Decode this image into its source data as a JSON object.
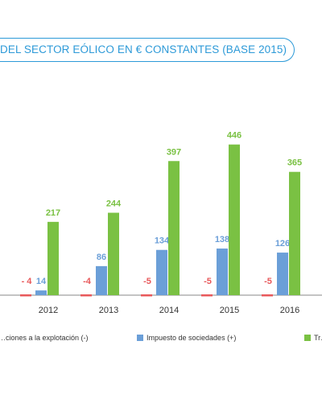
{
  "chart_data": {
    "type": "bar",
    "title": "DEL SECTOR EÓLICO EN € CONSTANTES (BASE 2015)",
    "categories": [
      "2012",
      "2013",
      "2014",
      "2015",
      "2016"
    ],
    "ylim": [
      -20,
      460
    ],
    "series": [
      {
        "name": "…ciones a la explotación (-)",
        "color": "#e8585a",
        "values": [
          -4,
          -4,
          -5,
          -5,
          -5
        ],
        "labels": [
          "- 4",
          "-4",
          "-5",
          "-5",
          "-5"
        ]
      },
      {
        "name": "Impuesto de sociedades (+)",
        "color": "#6b9fd8",
        "values": [
          14,
          86,
          134,
          138,
          126
        ],
        "labels": [
          "14",
          "86",
          "134",
          "138",
          "126"
        ]
      },
      {
        "name": "Tr…",
        "color": "#7ac143",
        "values": [
          217,
          244,
          397,
          446,
          365
        ],
        "labels": [
          "217",
          "244",
          "397",
          "446",
          "365"
        ]
      }
    ],
    "grid": false,
    "legend": "bottom"
  }
}
